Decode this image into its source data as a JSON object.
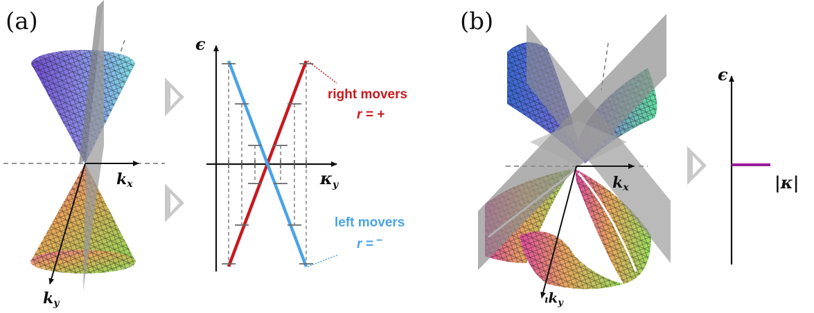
{
  "panel_a": {
    "label": "(a)",
    "cone_axes": {
      "kx": "k",
      "kx_sub": "x",
      "ky": "k",
      "ky_sub": "y"
    },
    "dispersion": {
      "y_label": "ϵ",
      "x_label": "κ",
      "x_label_sub": "y",
      "right_movers": {
        "name": "right movers",
        "sign_label": "r = +",
        "color": "#c8191e"
      },
      "left_movers": {
        "name": "left movers",
        "sign_label": "r =",
        "sign_symbol": "−",
        "color": "#4aa3e8"
      }
    }
  },
  "panel_b": {
    "label": "(b)",
    "saddle_axes": {
      "kx": "k",
      "kx_sub": "x",
      "ky_prefix": "ı",
      "ky": "k",
      "ky_sub": "y"
    },
    "spectrum": {
      "y_label": "ϵ",
      "x_label": "|κ|",
      "line_color": "#9a1a9a"
    }
  },
  "arrow_icon": "triangle-chevron-right"
}
